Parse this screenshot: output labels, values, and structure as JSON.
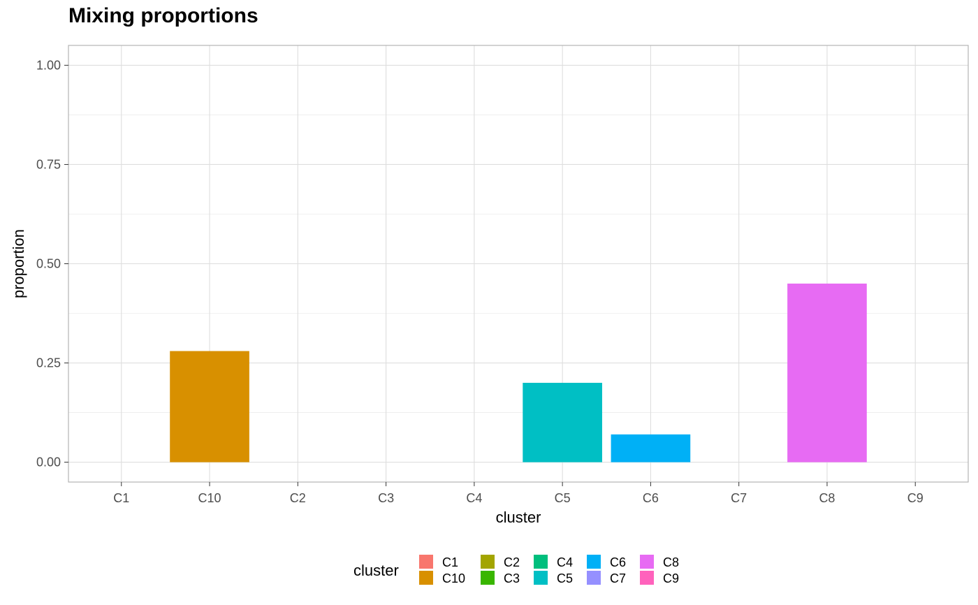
{
  "chart_data": {
    "type": "bar",
    "title": "Mixing proportions",
    "xlabel": "cluster",
    "ylabel": "proportion",
    "categories": [
      "C1",
      "C10",
      "C2",
      "C3",
      "C4",
      "C5",
      "C6",
      "C7",
      "C8",
      "C9"
    ],
    "values": [
      0,
      0.28,
      0,
      0,
      0,
      0.2,
      0.07,
      0,
      0.45,
      0
    ],
    "ylim": [
      -0.05,
      1.05
    ],
    "yticks": [
      "0.00",
      "0.25",
      "0.50",
      "0.75",
      "1.00"
    ],
    "grid": true,
    "legend": {
      "title": "cluster",
      "position": "bottom",
      "entries": [
        "C1",
        "C10",
        "C2",
        "C3",
        "C4",
        "C5",
        "C6",
        "C7",
        "C8",
        "C9"
      ]
    },
    "colors": {
      "C1": "#F8766D",
      "C10": "#D89000",
      "C2": "#A3A500",
      "C3": "#39B600",
      "C4": "#00BF7D",
      "C5": "#00BFC4",
      "C6": "#00B0F6",
      "C7": "#9590FF",
      "C8": "#E76BF3",
      "C9": "#FF62BC"
    }
  }
}
